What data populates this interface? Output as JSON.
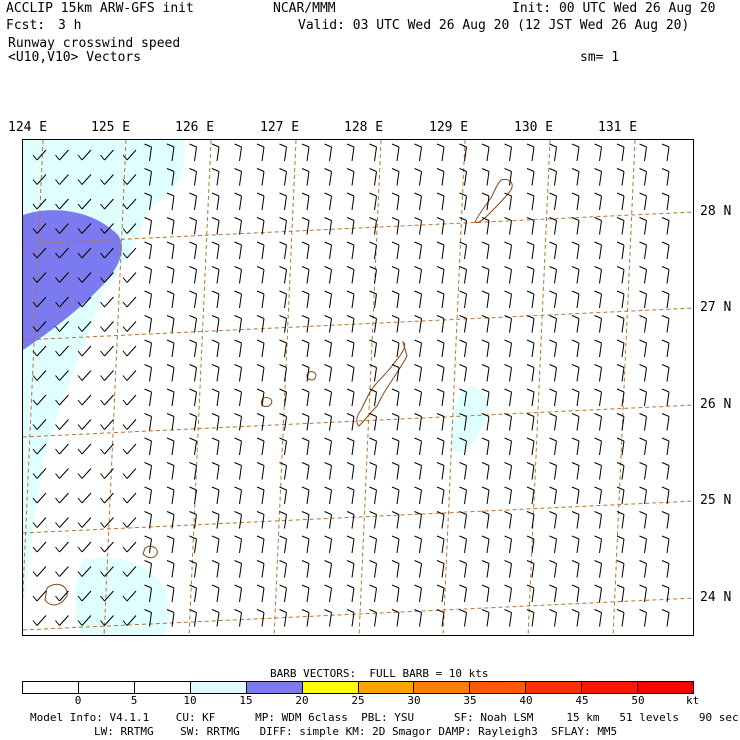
{
  "header": {
    "model": "ACCLIP 15km ARW-GFS init",
    "forecast_label": "Fcst:",
    "forecast_value": "3 h",
    "center": "NCAR/MMM",
    "init": "Init: 00 UTC Wed 26 Aug 20",
    "valid": "Valid: 03 UTC Wed 26 Aug 20 (12 JST Wed 26 Aug 20)",
    "field": "Runway crosswind speed",
    "vectors": "<U10,V10> Vectors",
    "smoothing": "sm= 1"
  },
  "map": {
    "lon_labels": [
      "124 E",
      "125 E",
      "126 E",
      "127 E",
      "128 E",
      "129 E",
      "130 E",
      "131 E"
    ],
    "lat_labels": [
      "28 N",
      "27 N",
      "26 N",
      "25 N",
      "24 N"
    ],
    "colors": {
      "grid": "#b87333",
      "coast": "#8b4513",
      "band_10_15": "#e0ffff",
      "band_15_20": "#7b7bef"
    }
  },
  "legend": {
    "barb_note": "BARB VECTORS:  FULL BARB = 10 kts",
    "unit": "kt",
    "ticks": [
      "0",
      "5",
      "10",
      "15",
      "20",
      "25",
      "30",
      "35",
      "40",
      "45",
      "50"
    ],
    "colors": [
      "#ffffff",
      "#ffffff",
      "#ffffff",
      "#e0ffff",
      "#7b7bef",
      "#ffff00",
      "#ffa500",
      "#ff7f00",
      "#ff5a00",
      "#ff3000",
      "#ff1500",
      "#ff0000"
    ]
  },
  "footer": {
    "line1": "Model Info: V4.1.1    CU: KF      MP: WDM 6class  PBL: YSU      SF: Noah LSM     15 km   51 levels   90 sec",
    "line2": "LW: RRTMG    SW: RRTMG   DIFF: simple KM: 2D Smagor DAMP: Rayleigh3  SFLAY: MM5"
  }
}
